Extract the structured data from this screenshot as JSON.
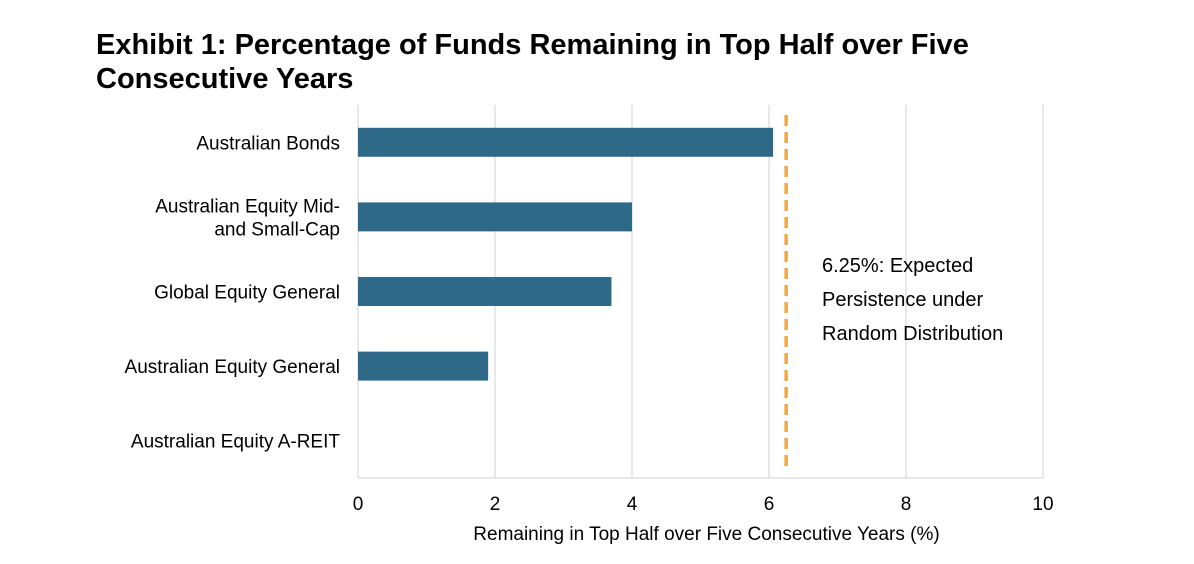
{
  "title_line1": "Exhibit 1: Percentage of Funds Remaining in Top Half over Five",
  "title_line2": "Consecutive Years",
  "chart_data": {
    "type": "bar",
    "orientation": "horizontal",
    "categories": [
      [
        "Australian Bonds"
      ],
      [
        "Australian Equity Mid-",
        "and Small-Cap"
      ],
      [
        "Global Equity General"
      ],
      [
        "Australian Equity General"
      ],
      [
        "Australian Equity A-REIT"
      ]
    ],
    "values": [
      6.06,
      4.0,
      3.7,
      1.9,
      0.0
    ],
    "xlabel": "Remaining in Top Half over Five Consecutive Years (%)",
    "xlim": [
      0,
      10
    ],
    "xticks": [
      "0",
      "2",
      "4",
      "6",
      "8",
      "10"
    ],
    "grid": true,
    "bar_color": "#2e6a87",
    "reference_line": {
      "value": 6.25,
      "color": "#f0a848",
      "style": "dashed",
      "label": [
        "6.25%: Expected",
        "Persistence under",
        "Random Distribution"
      ]
    }
  }
}
